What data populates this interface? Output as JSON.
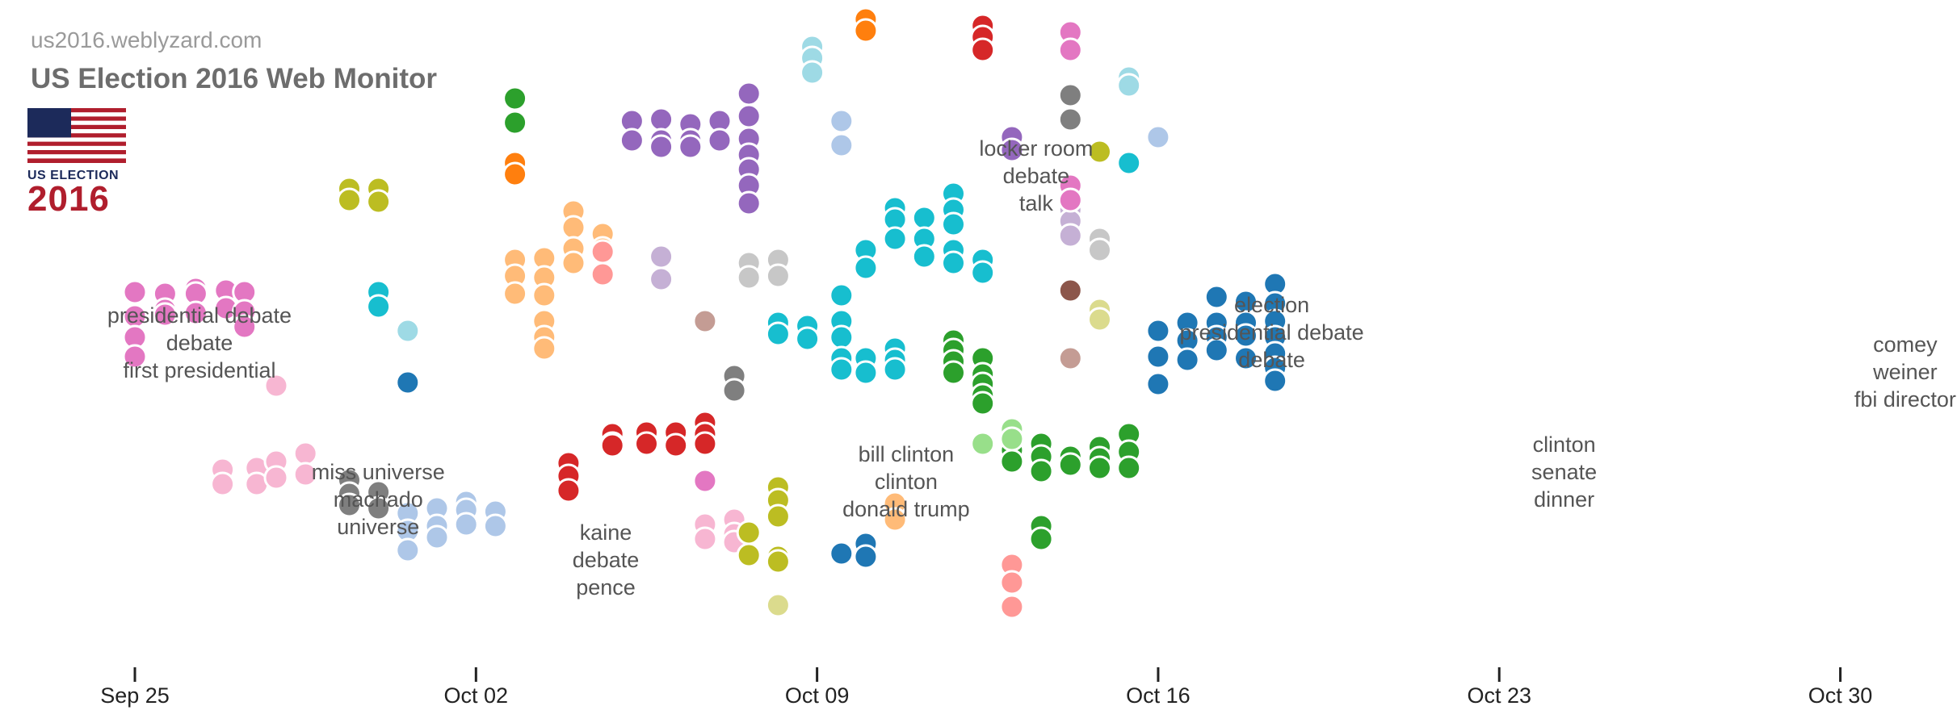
{
  "header": {
    "site": "us2016.weblyzard.com",
    "title": "US Election 2016 Web Monitor",
    "logo_line1": "US ELECTION",
    "logo_line2": "2016"
  },
  "chart_data": {
    "type": "scatter",
    "x_axis": {
      "ticks": [
        "Sep 25",
        "Oct 02",
        "Oct 09",
        "Oct 16",
        "Oct 23",
        "Oct 30"
      ],
      "range": [
        "2016-09-25",
        "2016-11-01"
      ]
    },
    "clusters": [
      {
        "date": "2016-09-25",
        "labels": [
          "presidential debate",
          "debate",
          "first presidential"
        ]
      },
      {
        "date": "2016-09-29",
        "labels": [
          "miss universe",
          "machado",
          "universe"
        ]
      },
      {
        "date": "2016-10-04",
        "labels": [
          "kaine",
          "debate",
          "pence"
        ]
      },
      {
        "date": "2016-10-10",
        "labels": [
          "bill clinton",
          "clinton",
          "donald trump"
        ]
      },
      {
        "date": "2016-10-13",
        "labels": [
          "locker room",
          "debate",
          "talk"
        ]
      },
      {
        "date": "2016-10-18",
        "labels": [
          "election",
          "presidential debate",
          "debate"
        ]
      },
      {
        "date": "2016-10-24",
        "labels": [
          "clinton",
          "senate",
          "dinner"
        ]
      },
      {
        "date": "2016-10-31",
        "labels": [
          "comey",
          "weiner",
          "fbi director"
        ]
      }
    ],
    "colors": {
      "pink": "#e377c2",
      "light_pink": "#f7b6d2",
      "gray": "#7f7f7f",
      "light_gray": "#c7c7c7",
      "olive": "#bcbd22",
      "light_olive": "#dbdb8d",
      "cyan": "#17becf",
      "light_cyan": "#9edae5",
      "blue": "#1f77b4",
      "light_blue": "#aec7e8",
      "green": "#2ca02c",
      "light_green": "#98df8a",
      "orange": "#ff7f0e",
      "light_orange": "#ffbb78",
      "red": "#d62728",
      "light_red": "#ff9896",
      "purple": "#9467bd",
      "light_purple": "#c5b0d5",
      "brown": "#8c564b",
      "light_brown": "#c49c94"
    }
  }
}
